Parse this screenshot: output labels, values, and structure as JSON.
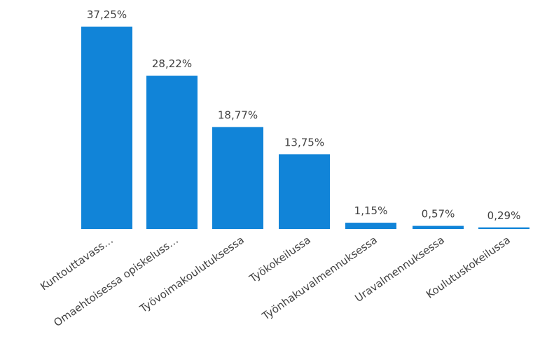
{
  "chart_data": {
    "type": "bar",
    "categories": [
      "Kuntouttavass…",
      "Omaehtoisessa opiskeluss…",
      "Työvoimakoulutuksessa",
      "Työkokeilussa",
      "Työnhakuvalmennuksessa",
      "Uravalmennuksessa",
      "Koulutuskokeilussa"
    ],
    "values": [
      37.25,
      28.22,
      18.77,
      13.75,
      1.15,
      0.57,
      0.29
    ],
    "value_labels": [
      "37,25%",
      "28,22%",
      "18,77%",
      "13,75%",
      "1,15%",
      "0,57%",
      "0,29%"
    ],
    "ylim": [
      0,
      37.25
    ],
    "grid": false,
    "legend": "none",
    "bar_color": "#1184d8"
  }
}
